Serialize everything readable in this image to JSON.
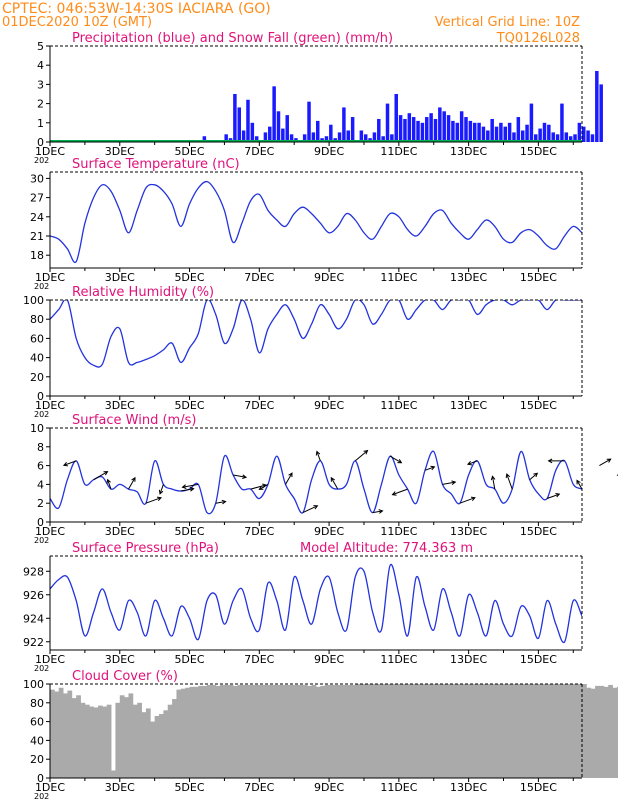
{
  "header": {
    "line1": "CPTEC:   046:53W-14:30S   IACIARA (GO)",
    "line2": "01DEC2020 10Z (GMT)",
    "grid_note": "Vertical Grid Line: 10Z",
    "run_code": "TQ0126L028"
  },
  "colors": {
    "header": "#ff8c1a",
    "panel_title": "#e0127a",
    "precip": "#1a1aff",
    "snow": "#00b050",
    "line": "#2233dd",
    "cloud": "#aaaaaa",
    "arrow": "#000000"
  },
  "x_axis": {
    "tick_labels": [
      "1DEC",
      "3DEC",
      "5DEC",
      "7DEC",
      "9DEC",
      "11DEC",
      "13DEC",
      "15DEC"
    ],
    "tick_days": [
      1,
      3,
      5,
      7,
      9,
      11,
      13,
      15
    ],
    "range_days": [
      1,
      16.25
    ],
    "year_label": "202"
  },
  "chart_data": [
    {
      "id": "precip",
      "type": "bar",
      "title": "Precipitation (blue) and Snow Fall (green) (mm/h)",
      "ylim": [
        0,
        5
      ],
      "yticks": [
        0,
        1,
        2,
        3,
        4,
        5
      ],
      "x_start_day": 1.0,
      "x_step_day": 0.125,
      "series": [
        {
          "name": "Precipitation",
          "values": [
            0,
            0,
            0,
            0,
            0,
            0,
            0,
            0,
            0,
            0,
            0,
            0,
            0,
            0,
            0,
            0,
            0,
            0,
            0,
            0,
            0,
            0,
            0,
            0,
            0,
            0,
            0,
            0,
            0,
            0,
            0,
            0.05,
            0.1,
            0,
            0,
            0.3,
            0,
            0,
            0,
            0.05,
            0.4,
            0.2,
            2.5,
            1.8,
            0.6,
            2.2,
            1.0,
            0.3,
            0.1,
            0.5,
            0.8,
            2.9,
            1.6,
            0.7,
            1.4,
            0.4,
            0.2,
            0.1,
            0.4,
            2.1,
            0.5,
            1.1,
            0.2,
            0.3,
            0.9,
            0.2,
            0.5,
            1.8,
            0.6,
            1.3,
            0.1,
            0.6,
            0.4,
            0.2,
            0.5,
            1.2,
            0.3,
            2.0,
            0.4,
            2.5,
            1.4,
            1.2,
            1.5,
            1.3,
            1.1,
            1.0,
            1.3,
            1.5,
            1.2,
            1.8,
            1.6,
            1.4,
            1.1,
            1.0,
            1.6,
            1.3,
            1.1,
            1.0,
            1.0,
            0.8,
            0.6,
            1.2,
            0.8,
            1.0,
            0.8,
            1.0,
            0.5,
            1.3,
            0.6,
            0.9,
            2.0,
            0.4,
            0.7,
            1.0,
            0.9,
            0.5,
            0.4,
            2.0,
            0.5,
            0.3,
            0.4,
            1.0,
            0.8,
            0.6,
            0.4,
            3.7,
            3.0
          ]
        },
        {
          "name": "Snow Fall",
          "values": [
            0
          ]
        }
      ]
    },
    {
      "id": "temperature",
      "type": "line",
      "title": "Surface Temperature (nC)",
      "ylim": [
        16,
        31
      ],
      "yticks": [
        18,
        21,
        24,
        27,
        30
      ],
      "x_start_day": 1.0,
      "x_step_day": 0.25,
      "values": [
        21,
        20.5,
        19,
        17,
        23,
        27,
        29,
        28,
        25,
        21.5,
        25,
        28.5,
        29,
        28,
        26,
        22.5,
        26,
        28.5,
        29.5,
        28,
        25,
        20,
        23,
        26.5,
        27.5,
        25,
        23.5,
        22.5,
        24.5,
        25.5,
        24.5,
        23,
        21.5,
        22.5,
        24.5,
        23.5,
        21.5,
        20.5,
        22.5,
        24.5,
        24,
        22,
        21,
        22.5,
        24.5,
        25,
        23,
        21.5,
        20.5,
        22,
        23.5,
        22.5,
        20.5,
        20,
        21.5,
        22,
        21,
        19.5,
        19,
        21,
        22.5,
        21.5,
        20,
        19.5,
        21,
        22,
        21.5,
        20.5,
        20,
        21,
        22,
        22,
        20,
        19.5,
        22,
        25,
        24,
        22,
        20,
        21.5,
        25,
        24,
        21.5,
        20.5,
        24,
        25.5,
        24.5,
        23.5
      ]
    },
    {
      "id": "humidity",
      "type": "line",
      "title": "Relative Humidity (%)",
      "ylim": [
        0,
        100
      ],
      "yticks": [
        0,
        20,
        40,
        60,
        80,
        100
      ],
      "x_start_day": 1.0,
      "x_step_day": 0.25,
      "values": [
        80,
        90,
        100,
        60,
        40,
        32,
        33,
        62,
        70,
        35,
        35,
        38,
        42,
        48,
        55,
        35,
        50,
        65,
        100,
        85,
        55,
        70,
        100,
        80,
        45,
        70,
        85,
        95,
        80,
        60,
        75,
        95,
        85,
        70,
        80,
        100,
        95,
        75,
        85,
        100,
        100,
        80,
        90,
        100,
        100,
        90,
        100,
        100,
        100,
        85,
        95,
        100,
        100,
        95,
        100,
        100,
        100,
        90,
        100,
        100,
        100,
        100,
        100,
        95,
        100,
        100,
        100,
        90,
        100,
        100,
        100,
        100,
        100,
        55,
        100,
        100,
        100,
        75,
        100,
        100,
        100,
        100,
        100,
        55,
        100,
        100,
        100,
        100
      ]
    },
    {
      "id": "wind",
      "type": "line",
      "title": "Surface Wind (m/s)",
      "ylim": [
        0,
        10
      ],
      "yticks": [
        0,
        2,
        4,
        6,
        8,
        10
      ],
      "x_start_day": 1.0,
      "x_step_day": 0.25,
      "values": [
        2.5,
        1.5,
        4.5,
        6.5,
        4,
        4.5,
        4.8,
        3.5,
        4,
        3.5,
        3.2,
        2,
        6.5,
        4,
        3.5,
        3.3,
        3.5,
        4,
        1,
        2,
        7,
        5,
        3.5,
        3.5,
        2.5,
        4,
        7,
        4,
        2.5,
        1,
        4.5,
        6.5,
        4,
        3.5,
        4,
        6.5,
        3.5,
        1,
        4,
        7,
        5,
        3.5,
        2,
        5.5,
        7.5,
        4,
        3,
        2,
        5,
        6.5,
        4,
        3.5,
        2,
        3.5,
        7.5,
        4.5,
        3,
        2.5,
        5.5,
        6.5,
        4,
        3.5,
        3,
        6,
        7,
        5,
        4,
        3,
        5,
        8,
        4.5,
        2.5,
        4.5,
        9,
        5.5,
        3,
        3.5,
        8,
        4.5,
        3.5,
        2.5,
        6.5,
        5,
        3.5,
        4,
        6,
        3.5,
        1.5
      ]
    },
    {
      "id": "pressure",
      "type": "line",
      "title": "Surface Pressure (hPa)",
      "annotation": "Model Altitude: 774.363 m",
      "ylim": [
        921.3,
        929.3
      ],
      "yticks": [
        922,
        924,
        926,
        928
      ],
      "x_start_day": 1.0,
      "x_step_day": 0.25,
      "values": [
        926.5,
        927.3,
        927.5,
        925.5,
        922.5,
        924.5,
        926.5,
        924.5,
        923,
        925.5,
        924.5,
        922.5,
        925.5,
        924,
        922.5,
        925,
        924,
        922.2,
        925.5,
        926,
        923.5,
        925.5,
        926.5,
        924,
        923,
        927,
        925.5,
        923,
        927.5,
        925.5,
        923.5,
        926.5,
        927.5,
        924.5,
        923,
        927.5,
        928,
        924.5,
        923,
        928.5,
        926,
        922.5,
        927.5,
        925,
        923,
        926.5,
        924.5,
        922.5,
        926,
        924.5,
        922.5,
        925.5,
        923.5,
        922.5,
        925,
        924.2,
        922.3,
        925.5,
        923.5,
        922,
        925.5,
        924.2,
        922.5,
        926,
        924,
        922.5,
        925.5,
        924,
        922.5,
        927,
        924.5,
        922.5,
        926.5,
        924.5,
        923,
        926.5,
        924.5,
        922.5,
        925.5,
        924.5,
        923,
        925.2,
        923.5,
        922.2,
        925,
        925.5,
        922,
        925
      ]
    },
    {
      "id": "cloud",
      "type": "bar",
      "title": "Cloud Cover (%)",
      "ylim": [
        0,
        100
      ],
      "yticks": [
        0,
        20,
        40,
        60,
        80,
        100
      ],
      "x_start_day": 1.0,
      "x_step_day": 0.125,
      "values": [
        94,
        92,
        96,
        90,
        93,
        85,
        88,
        80,
        78,
        76,
        75,
        77,
        76,
        78,
        8,
        80,
        88,
        86,
        90,
        78,
        80,
        70,
        74,
        60,
        66,
        68,
        72,
        78,
        84,
        94,
        95,
        96,
        97,
        97,
        98,
        98,
        99,
        99,
        98,
        99,
        99,
        99,
        98,
        99,
        99,
        99,
        99,
        99,
        99,
        99,
        99,
        99,
        99,
        99,
        99,
        99,
        99,
        99,
        99,
        98,
        99,
        97,
        98,
        99,
        99,
        99,
        99,
        99,
        99,
        99,
        100,
        100,
        100,
        100,
        100,
        100,
        100,
        100,
        100,
        100,
        100,
        100,
        100,
        100,
        100,
        100,
        100,
        100,
        100,
        100,
        100,
        100,
        100,
        100,
        100,
        100,
        100,
        100,
        100,
        100,
        100,
        100,
        100,
        100,
        100,
        100,
        100,
        100,
        100,
        100,
        100,
        100,
        100,
        100,
        100,
        100,
        100,
        100,
        100,
        100,
        100,
        100,
        100,
        96,
        95,
        98,
        98,
        97,
        99,
        96,
        97,
        98,
        97,
        98,
        99,
        99,
        98,
        97,
        98,
        99,
        99,
        99,
        98,
        99,
        99,
        99,
        99,
        99
      ]
    }
  ]
}
